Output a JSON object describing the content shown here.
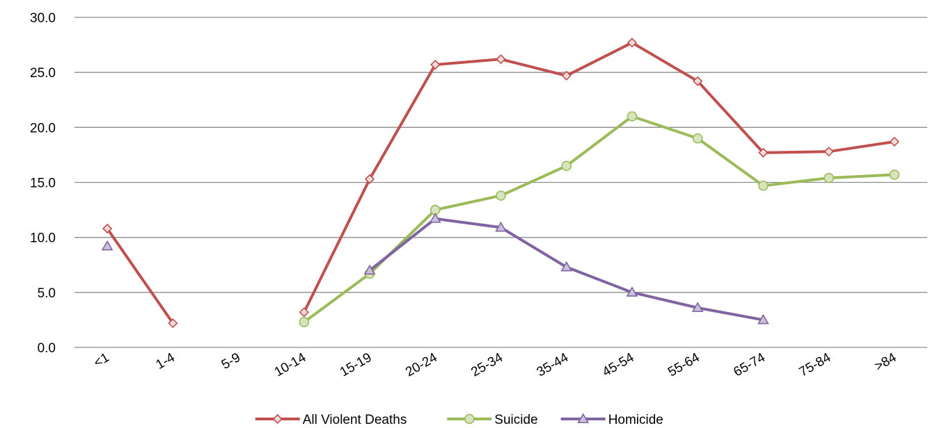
{
  "chart_data": {
    "type": "line",
    "title": "",
    "xlabel": "",
    "ylabel": "",
    "categories": [
      "<1",
      "1-4",
      "5-9",
      "10-14",
      "15-19",
      "20-24",
      "25-34",
      "35-44",
      "45-54",
      "55-64",
      "65-74",
      "75-84",
      ">84"
    ],
    "ylim": [
      0,
      30
    ],
    "y_ticks": [
      "0.0",
      "5.0",
      "10.0",
      "15.0",
      "20.0",
      "25.0",
      "30.0"
    ],
    "grid": true,
    "legend_position": "bottom",
    "series": [
      {
        "name": "All Violent Deaths",
        "color": "#c0504d",
        "marker": "diamond",
        "values": [
          10.8,
          2.2,
          null,
          3.2,
          15.3,
          25.7,
          26.2,
          24.7,
          27.7,
          24.2,
          17.7,
          17.8,
          18.7
        ]
      },
      {
        "name": "Suicide",
        "color": "#9bbb59",
        "marker": "circle",
        "values": [
          null,
          null,
          null,
          2.3,
          6.7,
          12.5,
          13.8,
          16.5,
          21.0,
          19.0,
          14.7,
          15.4,
          15.7
        ]
      },
      {
        "name": "Homicide",
        "color": "#8064a2",
        "marker": "triangle",
        "values": [
          9.2,
          null,
          null,
          null,
          7.0,
          11.7,
          10.9,
          7.3,
          5.0,
          3.6,
          2.5,
          null,
          null
        ]
      }
    ]
  }
}
